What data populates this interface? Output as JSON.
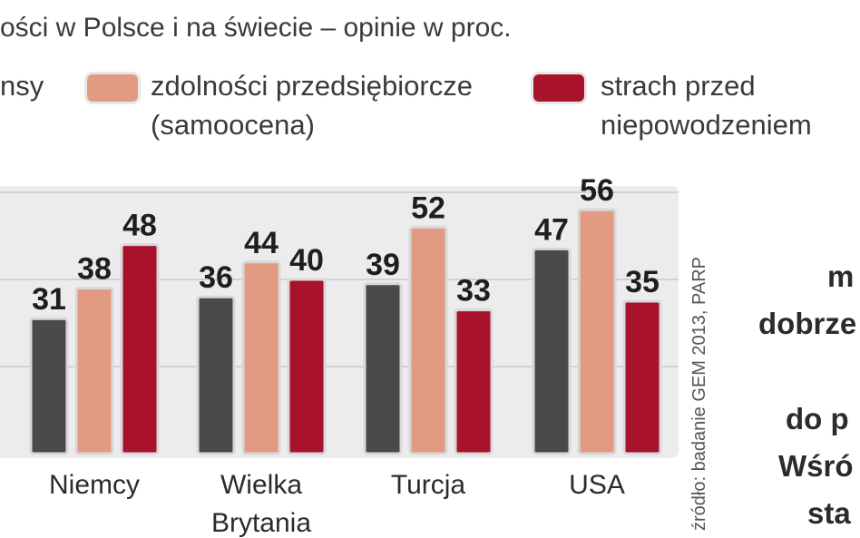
{
  "chart_data": {
    "type": "bar",
    "title": "ości w Polsce i na świecie – opinie w proc.",
    "categories": [
      [
        "Niemcy"
      ],
      [
        "Wielka",
        "Brytania"
      ],
      [
        "Turcja"
      ],
      [
        "USA"
      ]
    ],
    "series": [
      {
        "name": "nsy",
        "color": "#4a4a4a",
        "values": [
          31,
          36,
          39,
          47
        ]
      },
      {
        "name": "zdolności przedsiębiorcze (samoocena)",
        "color": "#e29a82",
        "values": [
          38,
          44,
          52,
          56
        ]
      },
      {
        "name": "strach przed niepowodzeniem",
        "color": "#a8122c",
        "values": [
          48,
          40,
          33,
          35
        ]
      }
    ],
    "legend": [
      {
        "lines": [
          "nsy"
        ]
      },
      {
        "lines": [
          "zdolności przedsiębiorcze",
          "(samoocena)"
        ]
      },
      {
        "lines": [
          "strach przed",
          "niepowodzeniem"
        ]
      }
    ],
    "ylim": [
      0,
      65
    ],
    "grid": true,
    "source": "źródło: badanie GEM 2013, PARP"
  },
  "side_text": [
    "m",
    "dobrze",
    "do p",
    "Wśró",
    "sta"
  ]
}
